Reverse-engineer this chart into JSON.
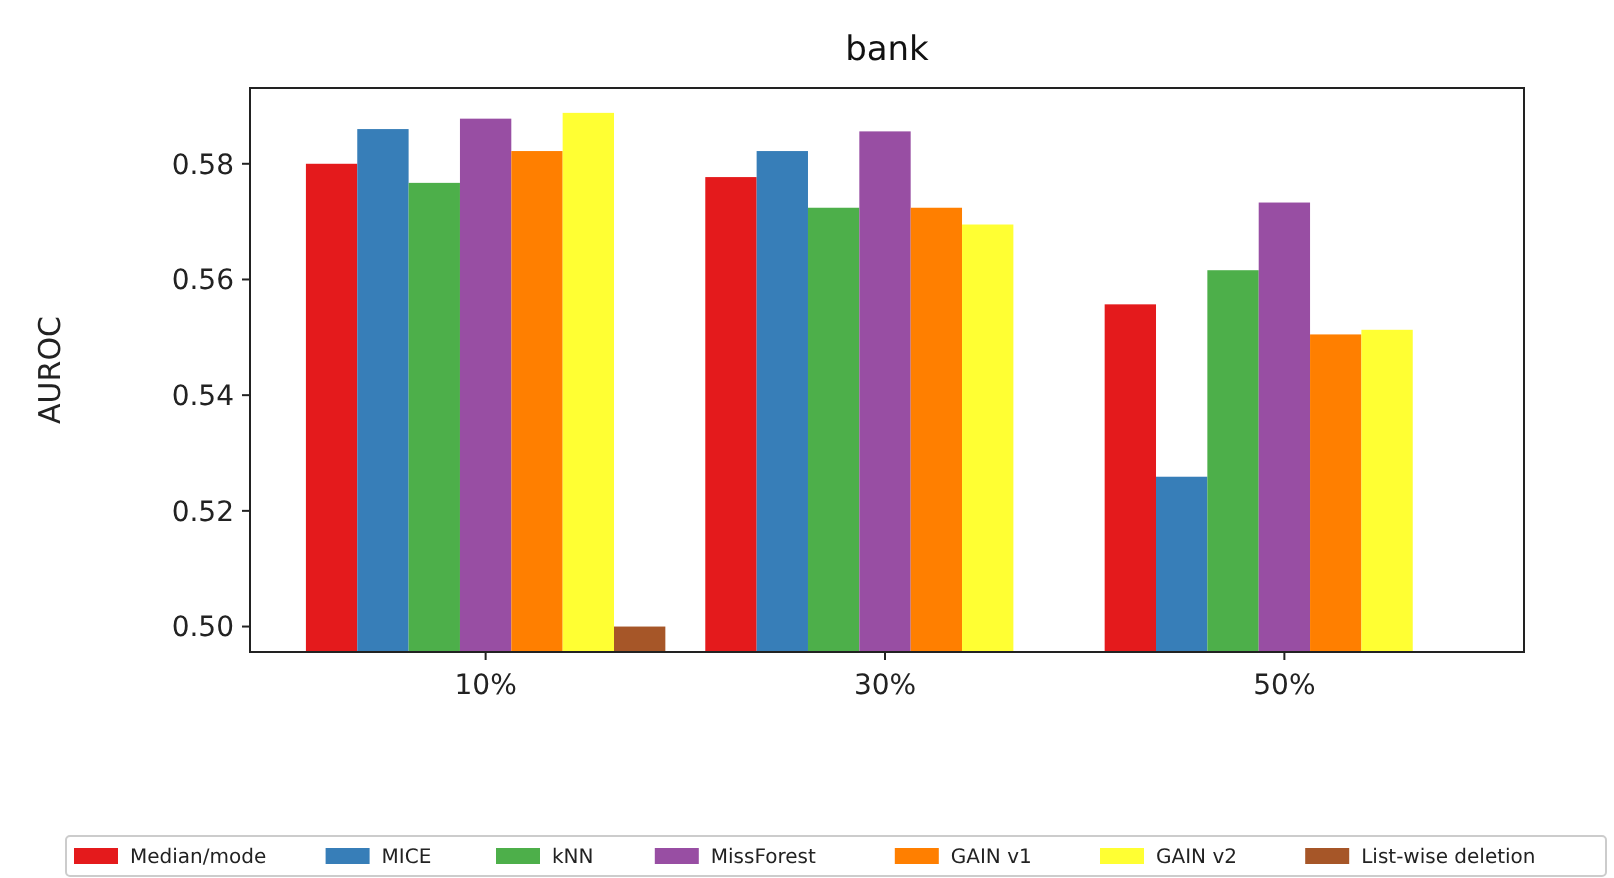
{
  "chart_data": {
    "type": "bar",
    "title": "bank",
    "ylabel": "AUROC",
    "categories": [
      "10%",
      "30%",
      "50%"
    ],
    "series": [
      {
        "name": "Median/mode",
        "color": "#e41a1c",
        "values": [
          0.58,
          0.5777,
          0.5557
        ]
      },
      {
        "name": "MICE",
        "color": "#377eb8",
        "values": [
          0.586,
          0.5822,
          0.5259
        ]
      },
      {
        "name": "kNN",
        "color": "#4daf4a",
        "values": [
          0.5767,
          0.5724,
          0.5616
        ]
      },
      {
        "name": "MissForest",
        "color": "#984ea3",
        "values": [
          0.5878,
          0.5856,
          0.5733
        ]
      },
      {
        "name": "GAIN v1",
        "color": "#ff7f00",
        "values": [
          0.5822,
          0.5724,
          0.5505
        ]
      },
      {
        "name": "GAIN v2",
        "color": "#ffff33",
        "values": [
          0.5888,
          0.5695,
          0.5513
        ]
      },
      {
        "name": "List-wise deletion",
        "color": "#a65628",
        "values": [
          0.5,
          null,
          null
        ]
      }
    ],
    "ylim": [
      0.4956,
      0.5931
    ],
    "yticks": [
      {
        "value": 0.5,
        "label": "0.50"
      },
      {
        "value": 0.52,
        "label": "0.52"
      },
      {
        "value": 0.54,
        "label": "0.54"
      },
      {
        "value": 0.56,
        "label": "0.56"
      },
      {
        "value": 0.58,
        "label": "0.58"
      }
    ],
    "grid": false,
    "legend": "bottom"
  }
}
